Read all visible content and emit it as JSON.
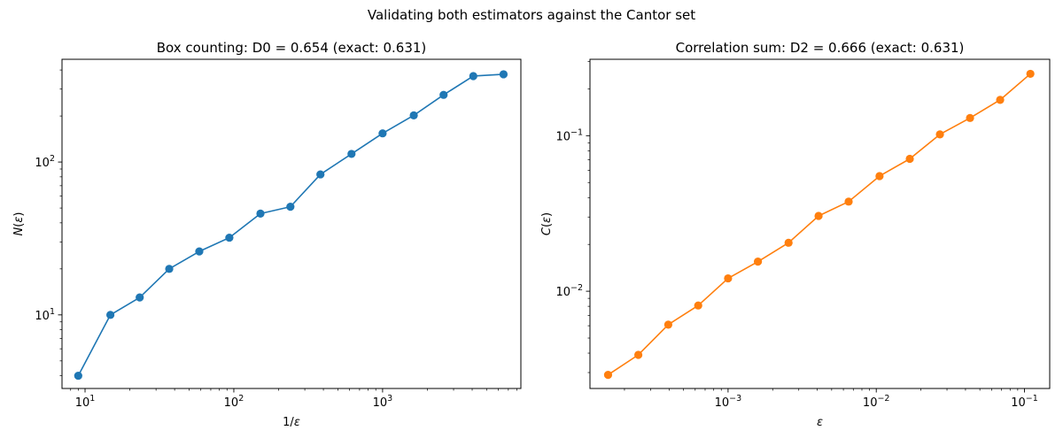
{
  "figure": {
    "suptitle": "Validating both estimators against the Cantor set"
  },
  "chart_data": [
    {
      "type": "line",
      "title": "Box counting: D0 = 0.654 (exact: 0.631)",
      "xlabel": "1/ε",
      "ylabel": "N(ε)",
      "xscale": "log",
      "yscale": "log",
      "xlim": [
        7,
        8500
      ],
      "ylim": [
        3.3,
        470
      ],
      "grid": false,
      "color": "#1f77b4",
      "marker": "circle",
      "x_ticks": [
        {
          "value": 10,
          "base": "10",
          "exp": "1"
        },
        {
          "value": 100,
          "base": "10",
          "exp": "2"
        },
        {
          "value": 1000,
          "base": "10",
          "exp": "3"
        }
      ],
      "y_ticks": [
        {
          "value": 10,
          "base": "10",
          "exp": "1"
        },
        {
          "value": 100,
          "base": "10",
          "exp": "2"
        }
      ],
      "series": [
        {
          "x": [
            9,
            14.8,
            23.3,
            36.8,
            58.6,
            93.3,
            151,
            240,
            382,
            618,
            1000,
            1620,
            2570,
            4070,
            6500
          ],
          "y": [
            4,
            10,
            13,
            20,
            26,
            32,
            46,
            51,
            83,
            113,
            154,
            202,
            275,
            365,
            375
          ]
        }
      ]
    },
    {
      "type": "line",
      "title": "Correlation sum: D2 = 0.666 (exact: 0.631)",
      "xlabel": "ε",
      "ylabel": "C(ε)",
      "xscale": "log",
      "yscale": "log",
      "xlim": [
        0.000117,
        0.148
      ],
      "ylim": [
        0.00237,
        0.31
      ],
      "grid": false,
      "color": "#ff7f0e",
      "marker": "circle",
      "x_ticks": [
        {
          "value": 0.001,
          "base": "10",
          "exp": "−3"
        },
        {
          "value": 0.01,
          "base": "10",
          "exp": "−2"
        },
        {
          "value": 0.1,
          "base": "10",
          "exp": "−1"
        }
      ],
      "y_ticks": [
        {
          "value": 0.01,
          "base": "10",
          "exp": "−2"
        },
        {
          "value": 0.1,
          "base": "10",
          "exp": "−1"
        }
      ],
      "series": [
        {
          "x": [
            0.000155,
            0.000248,
            0.000395,
            0.000629,
            0.001,
            0.00159,
            0.00256,
            0.00408,
            0.00651,
            0.01052,
            0.01683,
            0.02688,
            0.04292,
            0.06853,
            0.1096
          ],
          "y": [
            0.0029,
            0.0039,
            0.0061,
            0.0081,
            0.0121,
            0.0155,
            0.0205,
            0.0305,
            0.0377,
            0.055,
            0.071,
            0.102,
            0.13,
            0.17,
            0.25
          ]
        }
      ]
    }
  ]
}
